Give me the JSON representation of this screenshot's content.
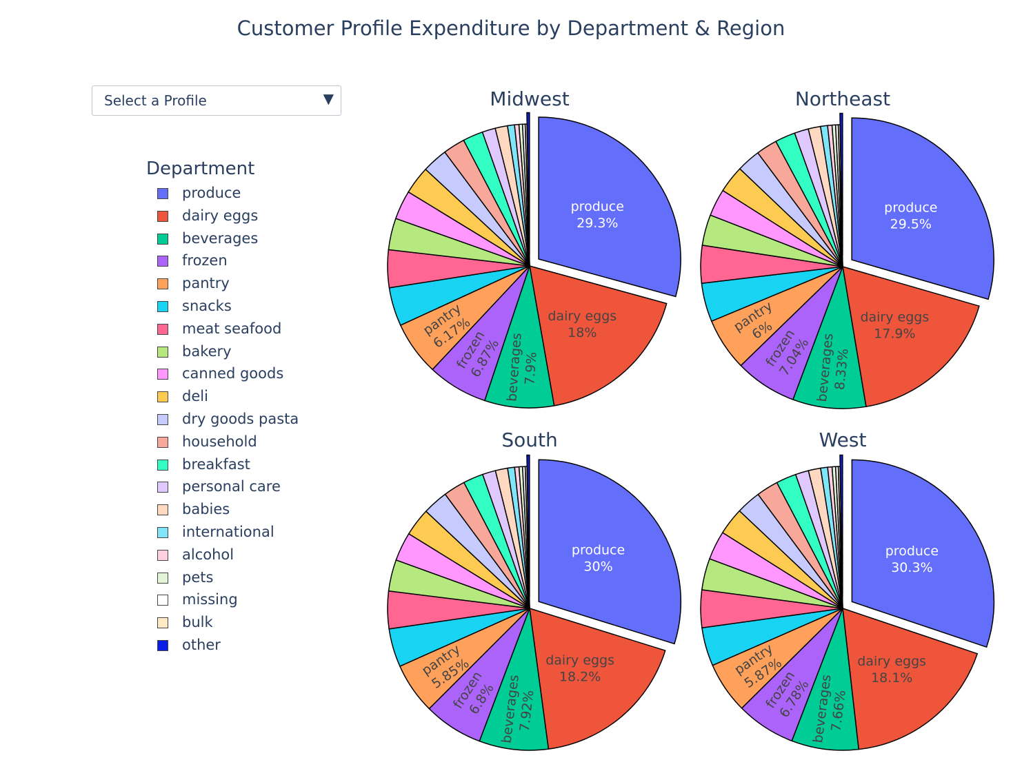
{
  "title": "Customer Profile Expenditure by Department & Region",
  "dropdown": {
    "label": "Select a Profile",
    "arrow": "▼"
  },
  "legend": {
    "title": "Department",
    "items": [
      {
        "label": "produce",
        "color": "#636efa"
      },
      {
        "label": "dairy eggs",
        "color": "#ef553b"
      },
      {
        "label": "beverages",
        "color": "#00cc96"
      },
      {
        "label": "frozen",
        "color": "#ab63fa"
      },
      {
        "label": "pantry",
        "color": "#ffa15a"
      },
      {
        "label": "snacks",
        "color": "#19d3f3"
      },
      {
        "label": "meat seafood",
        "color": "#ff6692"
      },
      {
        "label": "bakery",
        "color": "#b6e880"
      },
      {
        "label": "canned goods",
        "color": "#ff97ff"
      },
      {
        "label": "deli",
        "color": "#fecb52"
      },
      {
        "label": "dry goods pasta",
        "color": "#c6cafd"
      },
      {
        "label": "household",
        "color": "#f7a89b"
      },
      {
        "label": "breakfast",
        "color": "#33ffc4"
      },
      {
        "label": "personal care",
        "color": "#dec8fe"
      },
      {
        "label": "babies",
        "color": "#ffd8c1"
      },
      {
        "label": "international",
        "color": "#7fe6f9"
      },
      {
        "label": "alcohol",
        "color": "#ffd0e0"
      },
      {
        "label": "pets",
        "color": "#e3f5d8"
      },
      {
        "label": "missing",
        "color": "#ffffff"
      },
      {
        "label": "bulk",
        "color": "#ffeac5"
      },
      {
        "label": "other",
        "color": "#0a1ee6"
      }
    ]
  },
  "chart_data": [
    {
      "type": "pie",
      "title": "Midwest",
      "labels": [
        "produce",
        "dairy eggs",
        "beverages",
        "frozen",
        "pantry",
        "snacks",
        "meat seafood",
        "bakery",
        "canned goods",
        "deli",
        "dry goods pasta",
        "household",
        "breakfast",
        "personal care",
        "babies",
        "international",
        "alcohol",
        "pets",
        "missing",
        "bulk",
        "other"
      ],
      "values": [
        29.3,
        18.0,
        7.9,
        6.87,
        6.17,
        4.4,
        4.3,
        3.6,
        3.3,
        3.2,
        2.9,
        2.5,
        2.3,
        1.5,
        1.4,
        0.8,
        0.5,
        0.4,
        0.3,
        0.2,
        0.3
      ],
      "text": [
        "produce<br>29.3%",
        "dairy eggs<br>18%",
        "beverages<br>7.9%",
        "frozen<br>6.87%",
        "pantry<br>6.17%"
      ],
      "pull": {
        "produce": 0.08,
        "other": 0.08
      }
    },
    {
      "type": "pie",
      "title": "Northeast",
      "labels": [
        "produce",
        "dairy eggs",
        "beverages",
        "frozen",
        "pantry",
        "snacks",
        "meat seafood",
        "bakery",
        "canned goods",
        "deli",
        "dry goods pasta",
        "household",
        "breakfast",
        "personal care",
        "babies",
        "international",
        "alcohol",
        "pets",
        "missing",
        "bulk",
        "other"
      ],
      "values": [
        29.5,
        17.9,
        8.33,
        7.04,
        6.0,
        4.4,
        4.3,
        3.5,
        3.1,
        3.1,
        2.7,
        2.4,
        2.3,
        1.6,
        1.4,
        0.8,
        0.5,
        0.4,
        0.3,
        0.2,
        0.3
      ],
      "text": [
        "produce<br>29.5%",
        "dairy eggs<br>17.9%",
        "beverages<br>8.33%",
        "frozen<br>7.04%",
        "pantry<br>6%"
      ],
      "pull": {
        "produce": 0.08,
        "other": 0.08
      }
    },
    {
      "type": "pie",
      "title": "South",
      "labels": [
        "produce",
        "dairy eggs",
        "beverages",
        "frozen",
        "pantry",
        "snacks",
        "meat seafood",
        "bakery",
        "canned goods",
        "deli",
        "dry goods pasta",
        "household",
        "breakfast",
        "personal care",
        "babies",
        "international",
        "alcohol",
        "pets",
        "missing",
        "bulk",
        "other"
      ],
      "values": [
        30.0,
        18.2,
        7.92,
        6.8,
        5.85,
        4.4,
        4.3,
        3.6,
        3.3,
        3.2,
        2.9,
        2.5,
        2.3,
        1.5,
        1.4,
        0.8,
        0.5,
        0.4,
        0.3,
        0.2,
        0.3
      ],
      "text": [
        "produce<br>30%",
        "dairy eggs<br>18.2%",
        "beverages<br>7.92%",
        "frozen<br>6.8%",
        "pantry<br>5.85%"
      ],
      "pull": {
        "produce": 0.08,
        "other": 0.08
      }
    },
    {
      "type": "pie",
      "title": "West",
      "labels": [
        "produce",
        "dairy eggs",
        "beverages",
        "frozen",
        "pantry",
        "snacks",
        "meat seafood",
        "bakery",
        "canned goods",
        "deli",
        "dry goods pasta",
        "household",
        "breakfast",
        "personal care",
        "babies",
        "international",
        "alcohol",
        "pets",
        "missing",
        "bulk",
        "other"
      ],
      "values": [
        30.3,
        18.1,
        7.66,
        6.78,
        5.87,
        4.4,
        4.3,
        3.6,
        3.3,
        3.1,
        2.8,
        2.5,
        2.3,
        1.5,
        1.4,
        0.8,
        0.5,
        0.4,
        0.3,
        0.2,
        0.3
      ],
      "text": [
        "produce<br>30.3%",
        "dairy eggs<br>18.1%",
        "beverages<br>7.66%",
        "frozen<br>6.78%",
        "pantry<br>5.87%"
      ],
      "pull": {
        "produce": 0.08,
        "other": 0.08
      }
    }
  ]
}
